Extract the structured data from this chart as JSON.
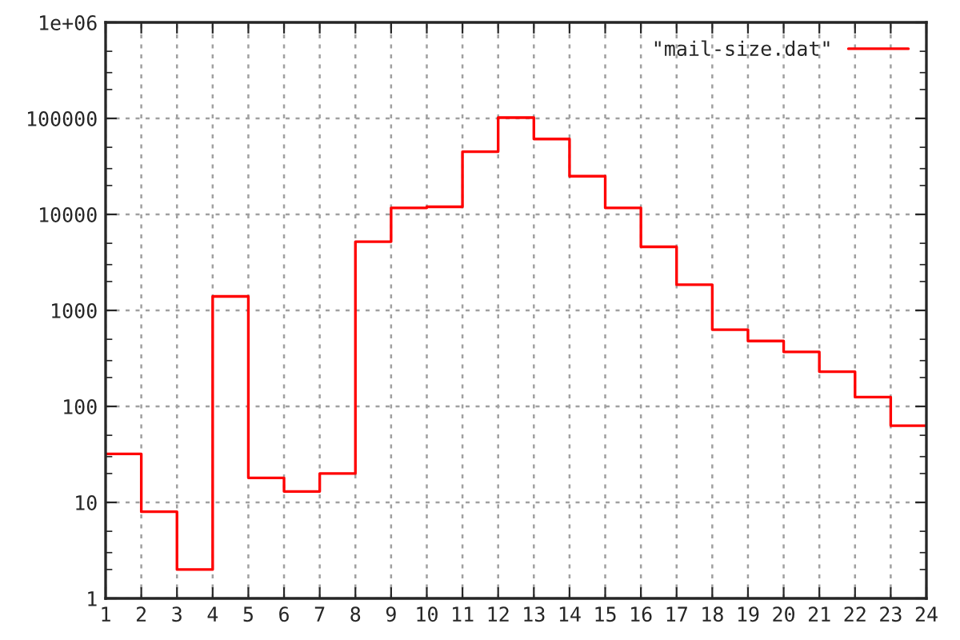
{
  "chart_data": {
    "type": "step",
    "x": [
      1,
      2,
      3,
      4,
      5,
      6,
      7,
      8,
      9,
      10,
      11,
      12,
      13,
      14,
      15,
      16,
      17,
      18,
      19,
      20,
      21,
      22,
      23,
      24
    ],
    "series": [
      {
        "name": "\"mail-size.dat\"",
        "color": "#ff0000",
        "values": [
          32,
          8,
          2,
          1400,
          18,
          13,
          20,
          5200,
          11700,
          12000,
          45000,
          102000,
          61000,
          25000,
          11700,
          4600,
          1850,
          630,
          480,
          370,
          230,
          125,
          63,
          63
        ]
      }
    ],
    "log": "y",
    "xlim": [
      1,
      24
    ],
    "xticks": [
      1,
      2,
      3,
      4,
      5,
      6,
      7,
      8,
      9,
      10,
      11,
      12,
      13,
      14,
      15,
      16,
      17,
      18,
      19,
      20,
      21,
      22,
      23,
      24
    ],
    "ylim": [
      1,
      1000000
    ],
    "yticks": [
      1,
      10,
      100,
      1000,
      10000,
      100000,
      {
        "value": 1000000,
        "label": "1e+06"
      }
    ],
    "grid": true,
    "legend": "top right"
  }
}
